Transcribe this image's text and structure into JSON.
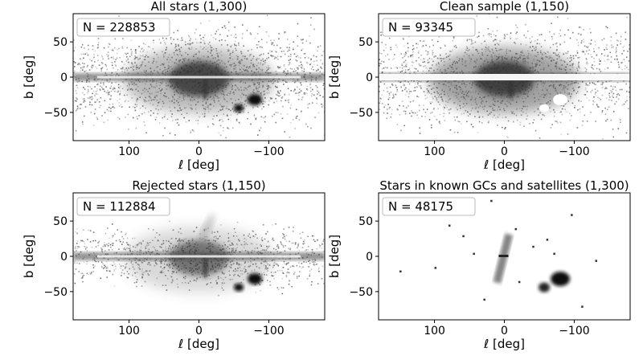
{
  "figure": {
    "panels": [
      {
        "title": "All stars (1,300)",
        "n_label": "N = 228853",
        "xlabel": "ℓ [deg]",
        "ylabel": "b [deg]",
        "xticks": [
          "100",
          "0",
          "−100"
        ],
        "yticks": [
          "50",
          "0",
          "−50"
        ],
        "style": "all"
      },
      {
        "title": "Clean sample (1,150)",
        "n_label": "N = 93345",
        "xlabel": "ℓ [deg]",
        "ylabel": "b [deg]",
        "xticks": [
          "100",
          "0",
          "−100"
        ],
        "yticks": [
          "50",
          "0",
          "−50"
        ],
        "style": "clean"
      },
      {
        "title": "Rejected stars (1,150)",
        "n_label": "N = 112884",
        "xlabel": "ℓ [deg]",
        "ylabel": "b [deg]",
        "xticks": [
          "100",
          "0",
          "−100"
        ],
        "yticks": [
          "50",
          "0",
          "−50"
        ],
        "style": "rejected"
      },
      {
        "title": "Stars in known GCs and satellites (1,300)",
        "n_label": "N = 48175",
        "xlabel": "ℓ [deg]",
        "ylabel": "b [deg]",
        "xticks": [
          "100",
          "0",
          "−100"
        ],
        "yticks": [
          "50",
          "0",
          "−50"
        ],
        "style": "gcs"
      }
    ]
  },
  "chart_data": [
    {
      "type": "heatmap",
      "title": "All stars (1,300)",
      "annotation": "N = 228853",
      "xlabel": "ℓ [deg]",
      "ylabel": "b [deg]",
      "xlim": [
        180,
        -180
      ],
      "ylim": [
        -90,
        90
      ],
      "xticks": [
        100,
        0,
        -100
      ],
      "yticks": [
        50,
        0,
        -50
      ],
      "colormap": "greys",
      "total_count": 228853
    },
    {
      "type": "heatmap",
      "title": "Clean sample (1,150)",
      "annotation": "N = 93345",
      "xlabel": "ℓ [deg]",
      "ylabel": "b [deg]",
      "xlim": [
        180,
        -180
      ],
      "ylim": [
        -90,
        90
      ],
      "xticks": [
        100,
        0,
        -100
      ],
      "yticks": [
        50,
        0,
        -50
      ],
      "colormap": "greys",
      "total_count": 93345
    },
    {
      "type": "heatmap",
      "title": "Rejected stars (1,150)",
      "annotation": "N = 112884",
      "xlabel": "ℓ [deg]",
      "ylabel": "b [deg]",
      "xlim": [
        180,
        -180
      ],
      "ylim": [
        -90,
        90
      ],
      "xticks": [
        100,
        0,
        -100
      ],
      "yticks": [
        50,
        0,
        -50
      ],
      "colormap": "greys",
      "total_count": 112884
    },
    {
      "type": "heatmap",
      "title": "Stars in known GCs and satellites (1,300)",
      "annotation": "N = 48175",
      "xlabel": "ℓ [deg]",
      "ylabel": "b [deg]",
      "xlim": [
        180,
        -180
      ],
      "ylim": [
        -90,
        90
      ],
      "xticks": [
        100,
        0,
        -100
      ],
      "yticks": [
        50,
        0,
        -50
      ],
      "colormap": "greys",
      "total_count": 48175
    }
  ]
}
